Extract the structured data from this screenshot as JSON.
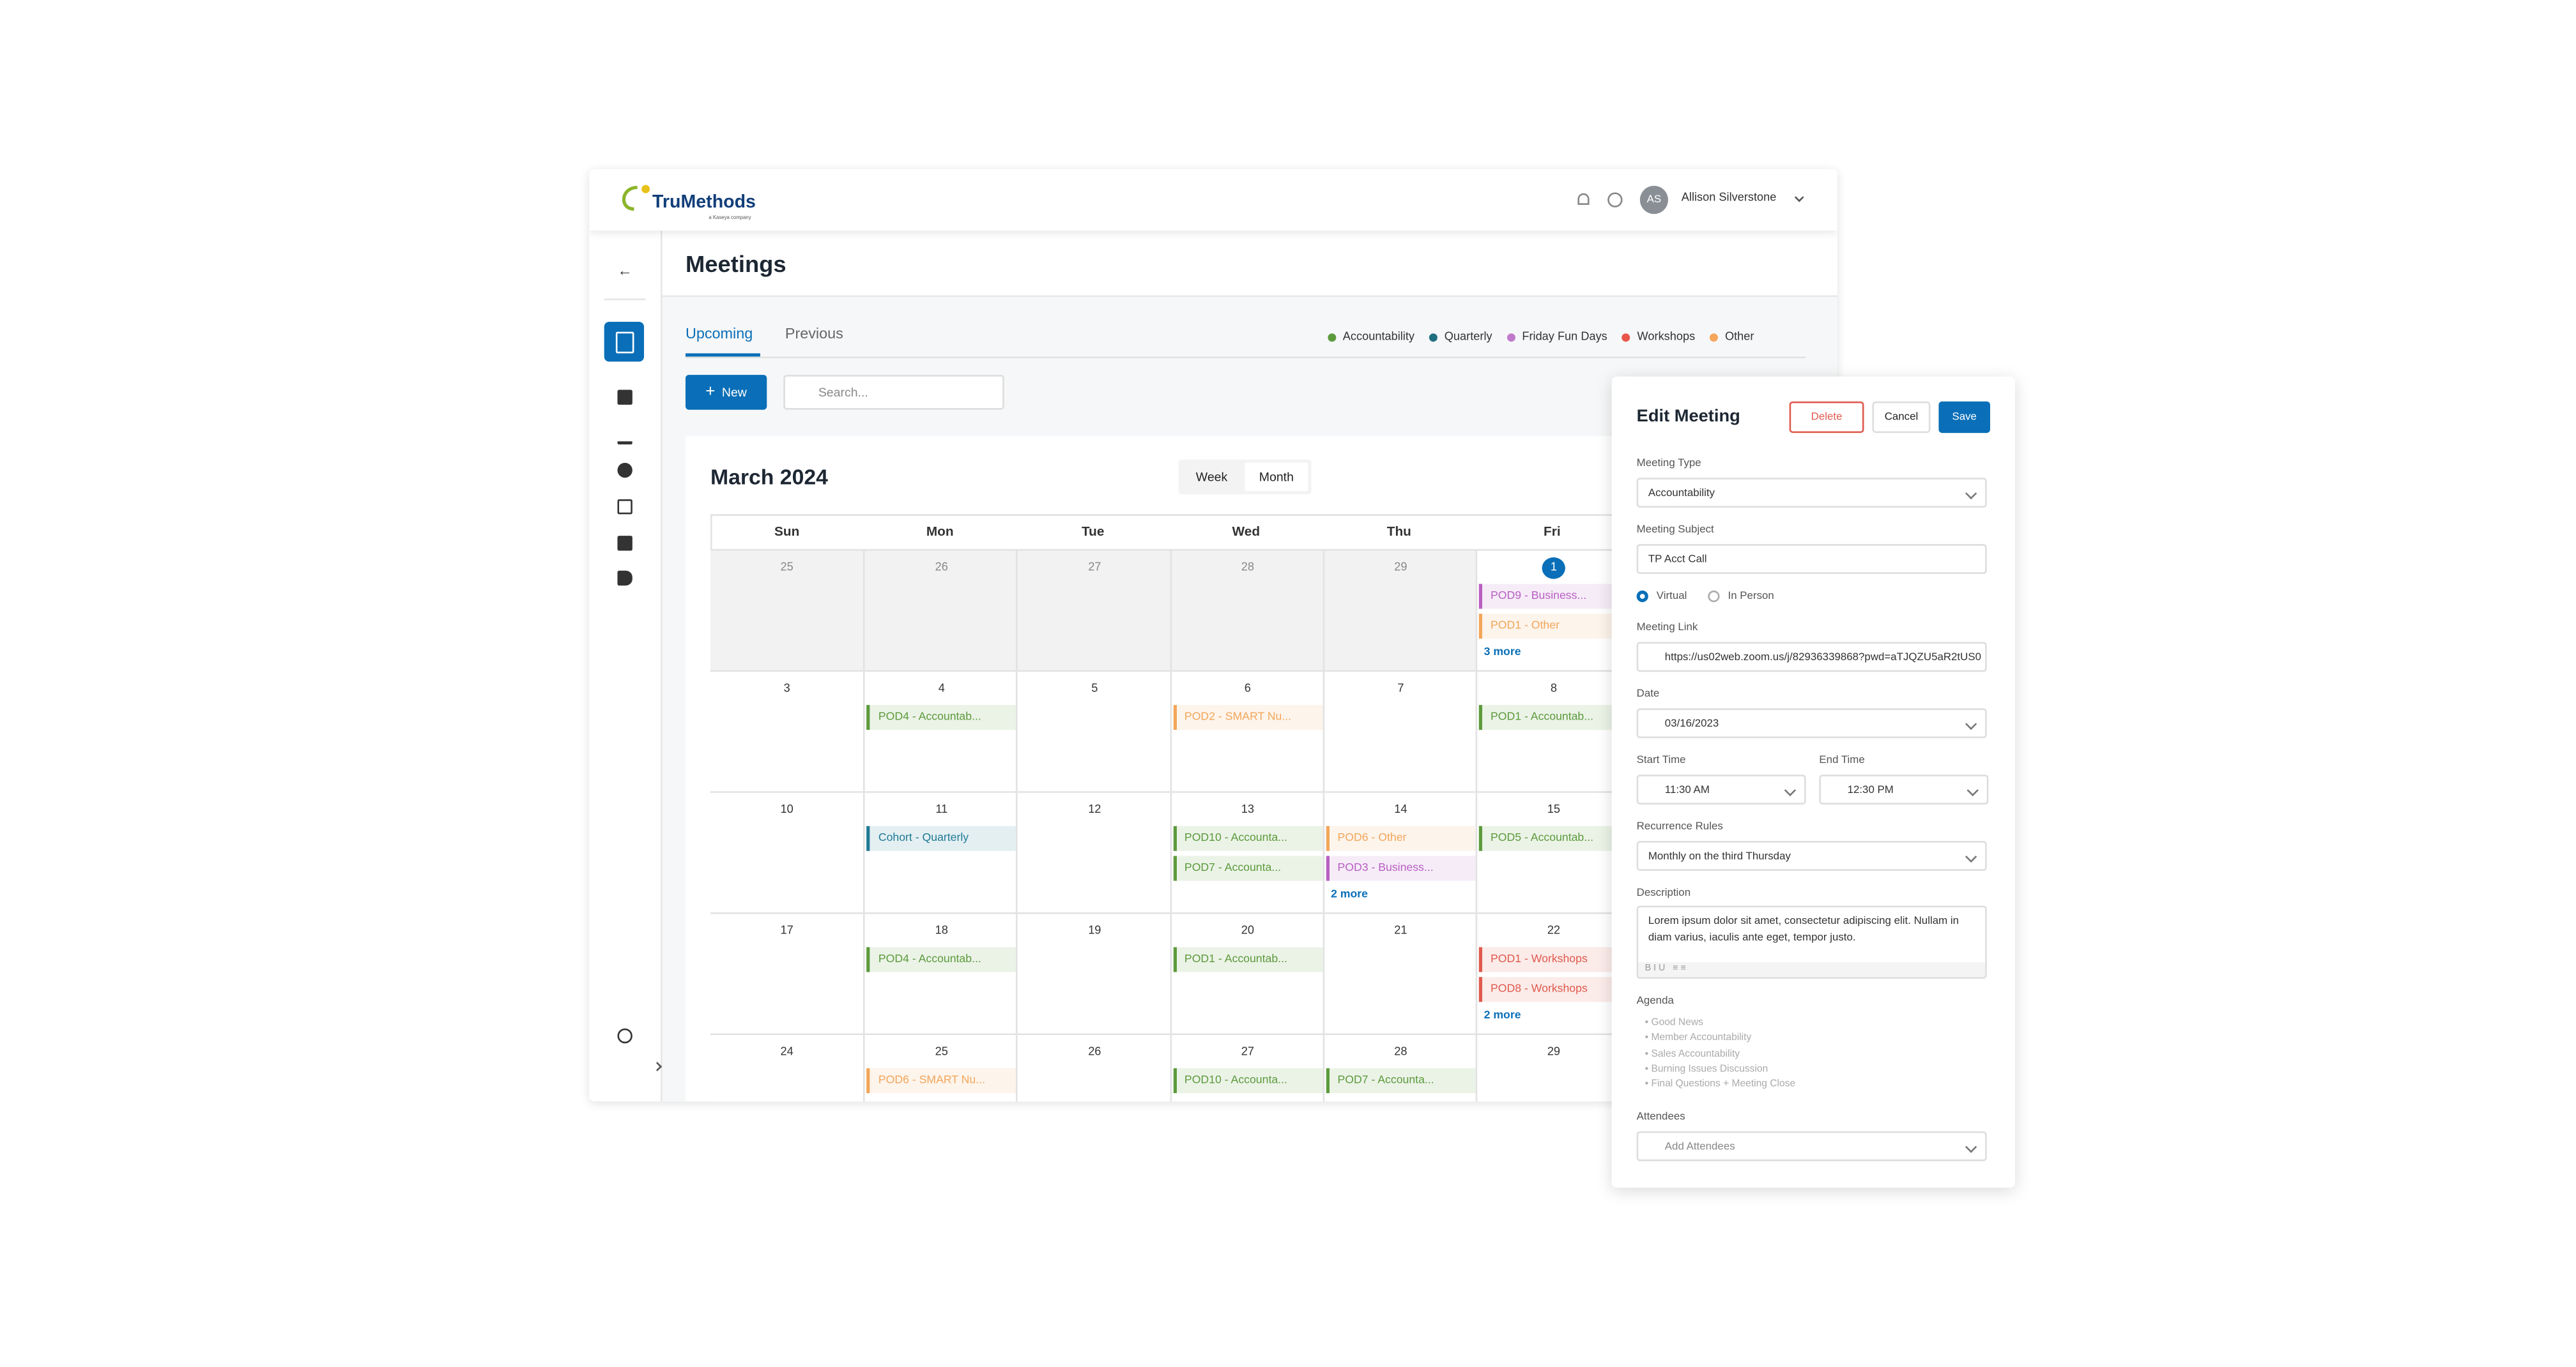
{
  "header": {
    "logo": "TruMethods",
    "logo_sub": "a Kaseya company",
    "avatar": "AS",
    "user": "Allison Silverstone"
  },
  "page": {
    "title": "Meetings",
    "tabs": [
      "Upcoming",
      "Previous"
    ],
    "new_button": "New",
    "search_placeholder": "Search..."
  },
  "legend": [
    {
      "name": "Accountability",
      "color": "#5c9a3c"
    },
    {
      "name": "Quarterly",
      "color": "#1f6f7f"
    },
    {
      "name": "Friday Fun Days",
      "color": "#c07acb"
    },
    {
      "name": "Workshops",
      "color": "#e9574a"
    },
    {
      "name": "Other",
      "color": "#f5a65b"
    }
  ],
  "calendar": {
    "title": "March 2024",
    "views": [
      "Week",
      "Month"
    ],
    "weekdays": [
      "Sun",
      "Mon",
      "Tue",
      "Wed",
      "Thu",
      "Fri"
    ],
    "weeks": [
      [
        {
          "day": 25,
          "muted": true
        },
        {
          "day": 26,
          "muted": true
        },
        {
          "day": 27,
          "muted": true
        },
        {
          "day": 28,
          "muted": true
        },
        {
          "day": 29,
          "muted": true
        },
        {
          "day": 1,
          "today": true,
          "events": [
            {
              "label": "POD9 - Business...",
              "color": "#b85fc2"
            },
            {
              "label": "POD1 - Other",
              "color": "#f2a65a"
            }
          ],
          "more": "3 more"
        }
      ],
      [
        {
          "day": 3
        },
        {
          "day": 4,
          "events": [
            {
              "label": "POD4 - Accountab...",
              "color": "#5c9a3c"
            }
          ]
        },
        {
          "day": 5
        },
        {
          "day": 6,
          "events": [
            {
              "label": "POD2 - SMART Nu...",
              "color": "#f2a65a"
            }
          ]
        },
        {
          "day": 7
        },
        {
          "day": 8,
          "events": [
            {
              "label": "POD1 - Accountab...",
              "color": "#5c9a3c"
            }
          ]
        }
      ],
      [
        {
          "day": 10
        },
        {
          "day": 11,
          "events": [
            {
              "label": "Cohort - Quarterly",
              "color": "#1f7a94"
            }
          ]
        },
        {
          "day": 12
        },
        {
          "day": 13,
          "events": [
            {
              "label": "POD10 - Accounta...",
              "color": "#5c9a3c"
            },
            {
              "label": "POD7 - Accounta...",
              "color": "#5c9a3c"
            }
          ]
        },
        {
          "day": 14,
          "events": [
            {
              "label": "POD6 - Other",
              "color": "#f2a65a"
            },
            {
              "label": "POD3 - Business...",
              "color": "#b85fc2"
            }
          ],
          "more": "2 more"
        },
        {
          "day": 15,
          "events": [
            {
              "label": "POD5 - Accountab...",
              "color": "#5c9a3c"
            }
          ]
        }
      ],
      [
        {
          "day": 17
        },
        {
          "day": 18,
          "events": [
            {
              "label": "POD4 - Accountab...",
              "color": "#5c9a3c"
            }
          ]
        },
        {
          "day": 19
        },
        {
          "day": 20,
          "events": [
            {
              "label": "POD1 - Accountab...",
              "color": "#5c9a3c"
            }
          ]
        },
        {
          "day": 21
        },
        {
          "day": 22,
          "events": [
            {
              "label": "POD1 - Workshops",
              "color": "#e05a4e"
            },
            {
              "label": "POD8 - Workshops",
              "color": "#e05a4e"
            }
          ],
          "more": "2 more"
        }
      ],
      [
        {
          "day": 24
        },
        {
          "day": 25,
          "events": [
            {
              "label": "POD6 - SMART Nu...",
              "color": "#f2a65a"
            }
          ]
        },
        {
          "day": 26
        },
        {
          "day": 27,
          "events": [
            {
              "label": "POD10 - Accounta...",
              "color": "#5c9a3c"
            }
          ]
        },
        {
          "day": 28,
          "events": [
            {
              "label": "POD7 - Accounta...",
              "color": "#5c9a3c"
            }
          ]
        },
        {
          "day": 29
        }
      ]
    ]
  },
  "edit": {
    "title": "Edit Meeting",
    "delete": "Delete",
    "cancel": "Cancel",
    "save": "Save",
    "type_label": "Meeting Type",
    "type": "Accountability",
    "subject_label": "Meeting Subject",
    "subject": "TP Acct Call",
    "virtual": "Virtual",
    "in_person": "In Person",
    "link_label": "Meeting Link",
    "link": "https://us02web.zoom.us/j/82936339868?pwd=aTJQZU5aR2tUS0",
    "date_label": "Date",
    "date": "03/16/2023",
    "start_label": "Start Time",
    "start": "11:30 AM",
    "end_label": "End Time",
    "end": "12:30 PM",
    "recurrence_label": "Recurrence Rules",
    "recurrence": "Monthly on the third Thursday",
    "description_label": "Description",
    "description": "Lorem ipsum dolor sit amet, consectetur adipiscing elit. Nullam in diam varius, iaculis ante eget, tempor justo.",
    "agenda_label": "Agenda",
    "agenda": [
      "Good News",
      "Member Accountability",
      "Sales Accountability",
      "Burning Issues Discussion",
      "Final Questions + Meeting Close"
    ],
    "attendees_label": "Attendees",
    "attendees": "Add Attendees"
  }
}
